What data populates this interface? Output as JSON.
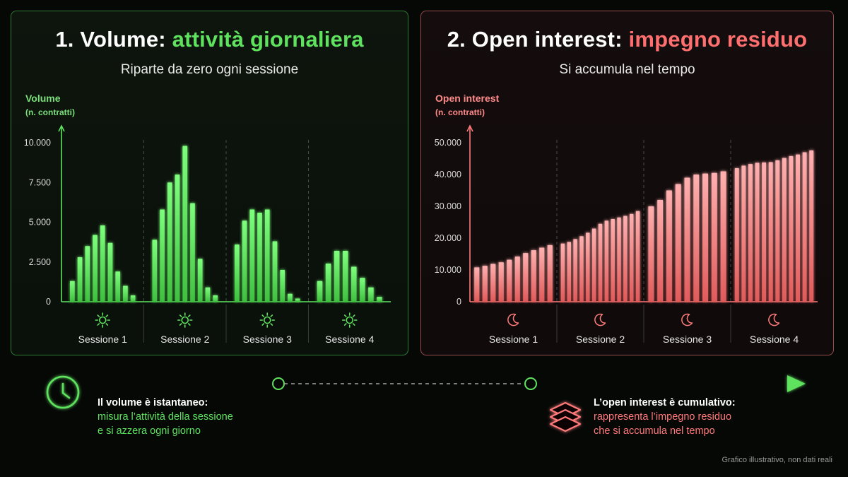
{
  "left_panel": {
    "title_number": "1. Volume:",
    "title_accent": "attività giornaliera",
    "subtitle": "Riparte da zero ogni sessione",
    "ylabel_1": "Volume",
    "ylabel_2": "(n. contratti)"
  },
  "right_panel": {
    "title_number": "2. Open interest:",
    "title_accent": "impegno residuo",
    "subtitle": "Si accumula nel tempo",
    "ylabel_1": "Open interest",
    "ylabel_2": "(n. contratti)"
  },
  "chart_data": [
    {
      "type": "bar",
      "ylabel": "Volume (n. contratti)",
      "ylim": [
        0,
        10000
      ],
      "yticks": [
        0,
        2500,
        5000,
        7500,
        10000
      ],
      "ytick_labels": [
        "0",
        "2.500",
        "5.000",
        "7.500",
        "10.000"
      ],
      "sessions": [
        "Sessione 1",
        "Sessione 2",
        "Sessione 3",
        "Sessione 4"
      ],
      "session_icon": "sun-icon",
      "color": "#5fe35f",
      "grid": "vertical dashed session separators",
      "values": [
        [
          1300,
          2800,
          3500,
          4200,
          4800,
          3700,
          1900,
          1000,
          400
        ],
        [
          3900,
          5800,
          7500,
          8000,
          9800,
          6200,
          2700,
          900,
          400
        ],
        [
          3600,
          5100,
          5800,
          5600,
          5800,
          3800,
          2000,
          500,
          200
        ],
        [
          1300,
          2400,
          3200,
          3200,
          2200,
          1500,
          900,
          300
        ]
      ]
    },
    {
      "type": "bar",
      "ylabel": "Open interest (n. contratti)",
      "ylim": [
        0,
        50000
      ],
      "yticks": [
        0,
        10000,
        20000,
        30000,
        40000,
        50000
      ],
      "ytick_labels": [
        "0",
        "10.000",
        "20.000",
        "30.000",
        "40.000",
        "50.000"
      ],
      "sessions": [
        "Sessione 1",
        "Sessione 2",
        "Sessione 3",
        "Sessione 4"
      ],
      "session_icon": "moon-icon",
      "color": "#ff7a7a",
      "grid": "vertical dashed session separators",
      "values": [
        [
          10800,
          11300,
          11900,
          12400,
          13200,
          14200,
          15300,
          16200,
          17000,
          17800
        ],
        [
          18300,
          18800,
          19700,
          20600,
          21700,
          23000,
          24500,
          25500,
          26000,
          26500,
          27000,
          27600,
          28500
        ],
        [
          30000,
          32000,
          35000,
          37000,
          39000,
          40000,
          40300,
          40500,
          41000
        ],
        [
          42000,
          42800,
          43300,
          43700,
          43800,
          43900,
          44500,
          45200,
          45800,
          46300,
          47000,
          47600
        ]
      ]
    }
  ],
  "timeline": {
    "left_note_title": "Il volume è istantaneo:",
    "left_note_line1": "misura l’attività della sessione",
    "left_note_line2": "e si azzera ogni giorno",
    "right_note_title": "L’open interest è cumulativo:",
    "right_note_line1": "rappresenta l’impegno residuo",
    "right_note_line2": "che si accumula nel tempo",
    "left_icon": "clock-icon",
    "right_icon": "layers-icon"
  },
  "footer": "Grafico illustrativo, non dati reali"
}
